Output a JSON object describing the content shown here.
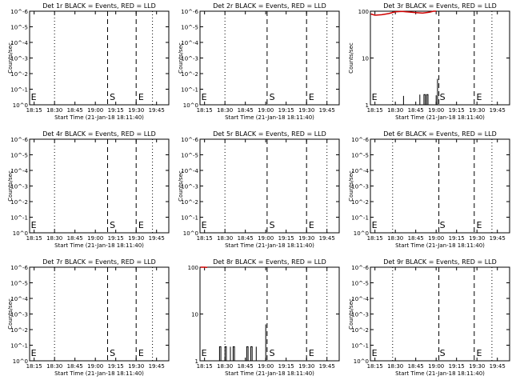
{
  "chart_data": [
    {
      "type": "line",
      "title": "Det 1r BLACK = Events, RED = LLD",
      "xlabel": "Start Time (21-Jan-18 18:11:40)",
      "ylabel": "Counts/sec",
      "x_ticks": [
        "18:15",
        "18:30",
        "18:45",
        "19:00",
        "19:15",
        "19:30",
        "19:45"
      ],
      "y_scale": "log",
      "y_ticks": [
        "10^0",
        "10^-1",
        "10^-2",
        "10^-3",
        "10^-4",
        "10^-5",
        "10^-6"
      ],
      "ylim": [
        1,
        1000000
      ],
      "dotted_lines": [
        "18:30",
        "19:42"
      ],
      "dashed_lines": [
        "19:09",
        "19:30"
      ],
      "markers": [
        {
          "label": "E",
          "x": "18:12"
        },
        {
          "label": "S",
          "x": "19:10"
        },
        {
          "label": "E",
          "x": "19:31"
        }
      ],
      "series": [
        {
          "color": "#000000",
          "points": []
        },
        {
          "color": "#d00000",
          "points": []
        }
      ]
    },
    {
      "type": "line",
      "title": "Det 2r BLACK = Events, RED = LLD",
      "xlabel": "Start Time (21-Jan-18 18:11:40)",
      "ylabel": "Counts/sec",
      "x_ticks": [
        "18:15",
        "18:30",
        "18:45",
        "19:00",
        "19:15",
        "19:30",
        "19:45"
      ],
      "y_scale": "log",
      "y_ticks": [
        "10^0",
        "10^-1",
        "10^-2",
        "10^-3",
        "10^-4",
        "10^-5",
        "10^-6"
      ],
      "ylim": [
        1,
        1000000
      ],
      "dotted_lines": [
        "18:30",
        "19:45"
      ],
      "dashed_lines": [
        "19:01",
        "19:30"
      ],
      "markers": [
        {
          "label": "E",
          "x": "18:12"
        },
        {
          "label": "S",
          "x": "19:02"
        },
        {
          "label": "E",
          "x": "19:31"
        }
      ],
      "series": [
        {
          "color": "#000000",
          "points": []
        },
        {
          "color": "#d00000",
          "points": []
        }
      ]
    },
    {
      "type": "line",
      "title": "Det 3r BLACK = Events, RED = LLD",
      "xlabel": "Start Time (21-Jan-18 18:11:40)",
      "ylabel": "Counts/sec",
      "x_ticks": [
        "18:15",
        "18:30",
        "18:45",
        "19:00",
        "19:15",
        "19:30",
        "19:45"
      ],
      "y_scale": "log",
      "y_ticks": [
        "1",
        "10",
        "100"
      ],
      "ylim": [
        1,
        100
      ],
      "dotted_lines": [
        "18:28",
        "19:41"
      ],
      "dashed_lines": [
        "19:02",
        "19:28"
      ],
      "markers": [
        {
          "label": "E",
          "x": "18:12"
        },
        {
          "label": "S",
          "x": "19:02"
        },
        {
          "label": "E",
          "x": "19:29"
        }
      ],
      "series": [
        {
          "color": "#000000",
          "points": [
            [
              "18:36",
              1
            ],
            [
              "18:36",
              1.55
            ],
            [
              "18:36",
              1
            ],
            [
              "18:48",
              1
            ],
            [
              "18:48",
              1.65
            ],
            [
              "18:48",
              1
            ],
            [
              "18:51",
              1
            ],
            [
              "18:51",
              1.65
            ],
            [
              "18:52",
              1.65
            ],
            [
              "18:52",
              1
            ],
            [
              "18:53",
              1
            ],
            [
              "18:53",
              1.65
            ],
            [
              "18:54",
              1.65
            ],
            [
              "18:54",
              1
            ],
            [
              "19:00",
              1
            ],
            [
              "19:00",
              1.6
            ],
            [
              "19:00",
              1
            ],
            [
              "19:01",
              1
            ],
            [
              "19:01",
              2.3
            ],
            [
              "19:01",
              3.6
            ],
            [
              "19:01",
              1
            ]
          ]
        },
        {
          "color": "#d00000",
          "points": [
            [
              "18:12",
              87
            ],
            [
              "18:15",
              82
            ],
            [
              "18:20",
              84
            ],
            [
              "18:25",
              89
            ],
            [
              "18:30",
              97
            ],
            [
              "18:35",
              99
            ],
            [
              "18:40",
              96
            ],
            [
              "18:45",
              93
            ],
            [
              "18:50",
              91
            ],
            [
              "18:55",
              95
            ],
            [
              "18:58",
              100
            ],
            [
              "19:00",
              100
            ]
          ]
        }
      ]
    },
    {
      "type": "line",
      "title": "Det 4r BLACK = Events, RED = LLD",
      "xlabel": "Start Time (21-Jan-18 18:11:40)",
      "ylabel": "Counts/sec",
      "x_ticks": [
        "18:15",
        "18:30",
        "18:45",
        "19:00",
        "19:15",
        "19:30",
        "19:45"
      ],
      "y_scale": "log",
      "y_ticks": [
        "10^0",
        "10^-1",
        "10^-2",
        "10^-3",
        "10^-4",
        "10^-5",
        "10^-6"
      ],
      "ylim": [
        1,
        1000000
      ],
      "dotted_lines": [
        "18:30",
        "19:42"
      ],
      "dashed_lines": [
        "19:09",
        "19:30"
      ],
      "markers": [
        {
          "label": "E",
          "x": "18:12"
        },
        {
          "label": "S",
          "x": "19:10"
        },
        {
          "label": "E",
          "x": "19:31"
        }
      ],
      "series": [
        {
          "color": "#000000",
          "points": []
        },
        {
          "color": "#d00000",
          "points": []
        }
      ]
    },
    {
      "type": "line",
      "title": "Det 5r BLACK = Events, RED = LLD",
      "xlabel": "Start Time (21-Jan-18 18:11:40)",
      "ylabel": "Counts/sec",
      "x_ticks": [
        "18:15",
        "18:30",
        "18:45",
        "19:00",
        "19:15",
        "19:30",
        "19:45"
      ],
      "y_scale": "log",
      "y_ticks": [
        "10^0",
        "10^-1",
        "10^-2",
        "10^-3",
        "10^-4",
        "10^-5",
        "10^-6"
      ],
      "ylim": [
        1,
        1000000
      ],
      "dotted_lines": [
        "18:30",
        "19:45"
      ],
      "dashed_lines": [
        "19:01",
        "19:30"
      ],
      "markers": [
        {
          "label": "E",
          "x": "18:12"
        },
        {
          "label": "S",
          "x": "19:02"
        },
        {
          "label": "E",
          "x": "19:31"
        }
      ],
      "series": [
        {
          "color": "#000000",
          "points": []
        },
        {
          "color": "#d00000",
          "points": []
        }
      ]
    },
    {
      "type": "line",
      "title": "Det 6r BLACK = Events, RED = LLD",
      "xlabel": "Start Time (21-Jan-18 18:11:40)",
      "ylabel": "Counts/sec",
      "x_ticks": [
        "18:15",
        "18:30",
        "18:45",
        "19:00",
        "19:15",
        "19:30",
        "19:45"
      ],
      "y_scale": "log",
      "y_ticks": [
        "10^0",
        "10^-1",
        "10^-2",
        "10^-3",
        "10^-4",
        "10^-5",
        "10^-6"
      ],
      "ylim": [
        1,
        1000000
      ],
      "dotted_lines": [
        "18:28",
        "19:41"
      ],
      "dashed_lines": [
        "19:02",
        "19:28"
      ],
      "markers": [
        {
          "label": "E",
          "x": "18:12"
        },
        {
          "label": "S",
          "x": "19:02"
        },
        {
          "label": "E",
          "x": "19:29"
        }
      ],
      "series": [
        {
          "color": "#000000",
          "points": []
        },
        {
          "color": "#d00000",
          "points": []
        }
      ]
    },
    {
      "type": "line",
      "title": "Det 7r BLACK = Events, RED = LLD",
      "xlabel": "Start Time (21-Jan-18 18:11:40)",
      "ylabel": "Counts/sec",
      "x_ticks": [
        "18:15",
        "18:30",
        "18:45",
        "19:00",
        "19:15",
        "19:30",
        "19:45"
      ],
      "y_scale": "log",
      "y_ticks": [
        "10^0",
        "10^-1",
        "10^-2",
        "10^-3",
        "10^-4",
        "10^-5",
        "10^-6"
      ],
      "ylim": [
        1,
        1000000
      ],
      "dotted_lines": [
        "18:30",
        "19:42"
      ],
      "dashed_lines": [
        "19:09",
        "19:30"
      ],
      "markers": [
        {
          "label": "E",
          "x": "18:12"
        },
        {
          "label": "S",
          "x": "19:10"
        },
        {
          "label": "E",
          "x": "19:31"
        }
      ],
      "series": [
        {
          "color": "#000000",
          "points": []
        },
        {
          "color": "#d00000",
          "points": []
        }
      ]
    },
    {
      "type": "line",
      "title": "Det 8r BLACK = Events, RED = LLD",
      "xlabel": "Start Time (21-Jan-18 18:11:40)",
      "ylabel": "",
      "x_ticks": [
        "18:15",
        "18:30",
        "18:45",
        "19:00",
        "19:15",
        "19:30",
        "19:45"
      ],
      "y_scale": "log",
      "y_ticks": [
        "1",
        "10",
        "100"
      ],
      "ylim": [
        1,
        100
      ],
      "dotted_lines": [
        "18:30",
        "19:45"
      ],
      "dashed_lines": [
        "19:01",
        "19:30"
      ],
      "markers": [
        {
          "label": "E",
          "x": "18:12"
        },
        {
          "label": "S",
          "x": "19:02"
        },
        {
          "label": "E",
          "x": "19:31"
        }
      ],
      "series": [
        {
          "color": "#000000",
          "points": [
            [
              "18:26",
              1
            ],
            [
              "18:26",
              2
            ],
            [
              "18:27",
              2
            ],
            [
              "18:27",
              1
            ],
            [
              "18:30",
              1
            ],
            [
              "18:30",
              2
            ],
            [
              "18:31",
              2
            ],
            [
              "18:31",
              1
            ],
            [
              "18:34",
              1
            ],
            [
              "18:34",
              2
            ],
            [
              "18:34",
              1
            ],
            [
              "18:36",
              1
            ],
            [
              "18:36",
              2
            ],
            [
              "18:37",
              2
            ],
            [
              "18:37",
              1
            ],
            [
              "18:46",
              1
            ],
            [
              "18:46",
              2
            ],
            [
              "18:47",
              2
            ],
            [
              "18:47",
              1
            ],
            [
              "18:49",
              1
            ],
            [
              "18:49",
              2
            ],
            [
              "18:50",
              2
            ],
            [
              "18:50",
              1
            ],
            [
              "18:53",
              1
            ],
            [
              "18:53",
              2
            ],
            [
              "18:53",
              1
            ],
            [
              "19:00",
              1
            ],
            [
              "19:00",
              2
            ],
            [
              "19:00",
              3
            ],
            [
              "19:00",
              6
            ],
            [
              "19:00",
              1
            ]
          ]
        },
        {
          "color": "#d00000",
          "points": [
            [
              "18:12",
              100
            ],
            [
              "18:15",
              100
            ],
            [
              "18:17",
              99
            ]
          ]
        }
      ]
    },
    {
      "type": "line",
      "title": "Det 9r BLACK = Events, RED = LLD",
      "xlabel": "Start Time (21-Jan-18 18:11:40)",
      "ylabel": "Counts/sec",
      "x_ticks": [
        "18:15",
        "18:30",
        "18:45",
        "19:00",
        "19:15",
        "19:30",
        "19:45"
      ],
      "y_scale": "log",
      "y_ticks": [
        "10^0",
        "10^-1",
        "10^-2",
        "10^-3",
        "10^-4",
        "10^-5",
        "10^-6"
      ],
      "ylim": [
        1,
        1000000
      ],
      "dotted_lines": [
        "18:28",
        "19:41"
      ],
      "dashed_lines": [
        "19:02",
        "19:28"
      ],
      "markers": [
        {
          "label": "E",
          "x": "18:12"
        },
        {
          "label": "S",
          "x": "19:02"
        },
        {
          "label": "E",
          "x": "19:29"
        }
      ],
      "series": [
        {
          "color": "#000000",
          "points": []
        },
        {
          "color": "#d00000",
          "points": []
        }
      ]
    }
  ]
}
